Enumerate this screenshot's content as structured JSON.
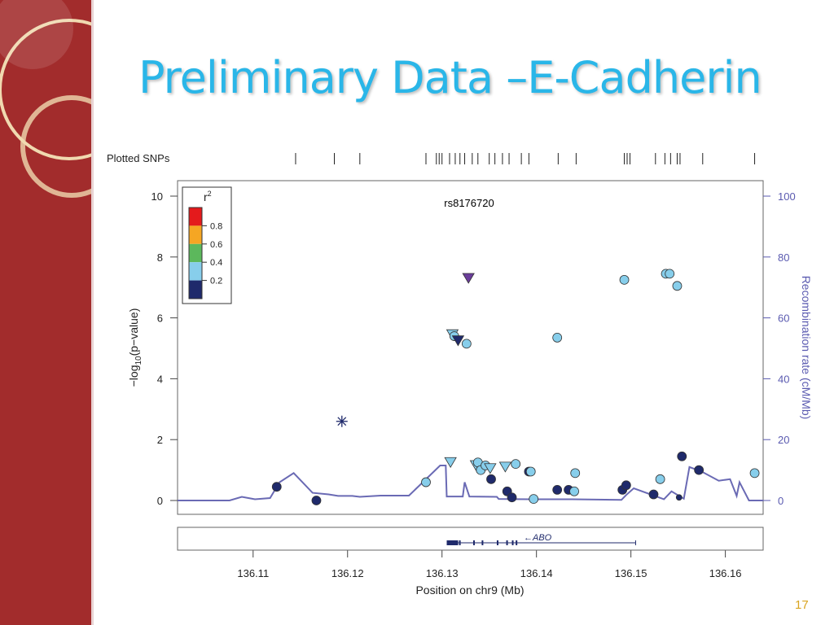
{
  "slide": {
    "title": "Preliminary Data –E-Cadherin",
    "page_number": "17",
    "title_color": "#2ab6e8",
    "sidebar_color": "#a22c2c",
    "ring_color": "#f0d9b0"
  },
  "chart_data": {
    "type": "scatter",
    "title": "",
    "annotation": "rs8176720",
    "xlabel": "Position on chr9 (Mb)",
    "ylabel_left": "−log10(p−value)",
    "ylabel_left_main": "−log",
    "ylabel_left_sub": "10",
    "ylabel_left_tail": "(p−value)",
    "ylabel_right": "Recombination rate (cM/Mb)",
    "xlim": [
      136.102,
      136.164
    ],
    "ylim": [
      0,
      10
    ],
    "ylim_right": [
      0,
      100
    ],
    "x_ticks": [
      "136.11",
      "136.12",
      "136.13",
      "136.14",
      "136.15",
      "136.16"
    ],
    "x_tick_values": [
      136.11,
      136.12,
      136.13,
      136.14,
      136.15,
      136.16
    ],
    "y_ticks_left": [
      "0",
      "2",
      "4",
      "6",
      "8",
      "10"
    ],
    "y_tick_values_left": [
      0,
      2,
      4,
      6,
      8,
      10
    ],
    "y_ticks_right": [
      "0",
      "20",
      "40",
      "60",
      "80",
      "100"
    ],
    "y_tick_values_right": [
      0,
      20,
      40,
      60,
      80,
      100
    ],
    "plotted_snps_label": "Plotted SNPs",
    "plotted_snps": [
      136.1145,
      136.1186,
      136.1213,
      136.1283,
      136.1294,
      136.1297,
      136.13,
      136.1308,
      136.1314,
      136.1319,
      136.1324,
      136.1332,
      136.1338,
      136.135,
      136.1356,
      136.1364,
      136.1371,
      136.1384,
      136.1392,
      136.1423,
      136.1442,
      136.1493,
      136.1496,
      136.1499,
      136.1526,
      136.1536,
      136.1542,
      136.1549,
      136.1552,
      136.1576,
      136.1631
    ],
    "legend": {
      "title": "r",
      "title_sup": "2",
      "levels": [
        "0.8",
        "0.6",
        "0.4",
        "0.2"
      ],
      "colors": [
        "#e41a1c",
        "#f5a623",
        "#5cb85c",
        "#87ceeb",
        "#1f2a6b"
      ]
    },
    "recomb_line_color": "#6a6ab4",
    "recombination": [
      [
        136.102,
        0
      ],
      [
        136.1075,
        0
      ],
      [
        136.1088,
        1.2
      ],
      [
        136.1095,
        0.8
      ],
      [
        136.1102,
        0.4
      ],
      [
        136.1118,
        0.8
      ],
      [
        136.1128,
        6
      ],
      [
        136.1143,
        9
      ],
      [
        136.1163,
        2.5
      ],
      [
        136.118,
        2
      ],
      [
        136.119,
        1.5
      ],
      [
        136.1205,
        1.5
      ],
      [
        136.1213,
        1.2
      ],
      [
        136.1235,
        1.6
      ],
      [
        136.1265,
        1.6
      ],
      [
        136.1298,
        11.5
      ],
      [
        136.1304,
        11.5
      ],
      [
        136.1305,
        1.3
      ],
      [
        136.1322,
        1.3
      ],
      [
        136.1324,
        6
      ],
      [
        136.1329,
        1.3
      ],
      [
        136.1358,
        1.2
      ],
      [
        136.136,
        0.5
      ],
      [
        136.1395,
        0.4
      ],
      [
        136.1405,
        0.4
      ],
      [
        136.1438,
        0.4
      ],
      [
        136.149,
        0.2
      ],
      [
        136.1495,
        1.8
      ],
      [
        136.1503,
        4
      ],
      [
        136.1535,
        0.4
      ],
      [
        136.1543,
        3
      ],
      [
        136.1556,
        0.6
      ],
      [
        136.1562,
        11
      ],
      [
        136.1575,
        9.5
      ],
      [
        136.1593,
        6.5
      ],
      [
        136.1605,
        7
      ],
      [
        136.1612,
        1.5
      ],
      [
        136.1615,
        6
      ],
      [
        136.1625,
        0
      ],
      [
        136.164,
        0
      ]
    ],
    "points": [
      {
        "x": 136.1194,
        "y": 2.6,
        "shape": "asterisk",
        "r2": 0.2
      },
      {
        "x": 136.1328,
        "y": 7.3,
        "shape": "triangle-down",
        "color": "#6a3d9a"
      },
      {
        "x": 136.1125,
        "y": 0.45,
        "shape": "circle",
        "r2": 0.1
      },
      {
        "x": 136.1167,
        "y": 0.0,
        "shape": "circle",
        "r2": 0.1
      },
      {
        "x": 136.1283,
        "y": 0.6,
        "shape": "circle",
        "r2": 0.3
      },
      {
        "x": 136.1309,
        "y": 1.25,
        "shape": "triangle-down",
        "r2": 0.3
      },
      {
        "x": 136.1311,
        "y": 5.45,
        "shape": "triangle-down",
        "r2": 0.3
      },
      {
        "x": 136.1313,
        "y": 5.4,
        "shape": "circle",
        "r2": 0.3
      },
      {
        "x": 136.1317,
        "y": 5.25,
        "shape": "triangle-down",
        "r2": 0.1
      },
      {
        "x": 136.1326,
        "y": 5.15,
        "shape": "circle",
        "r2": 0.3
      },
      {
        "x": 136.1336,
        "y": 1.15,
        "shape": "triangle-down",
        "r2": 0.3
      },
      {
        "x": 136.1338,
        "y": 1.25,
        "shape": "circle",
        "r2": 0.3
      },
      {
        "x": 136.1341,
        "y": 1.0,
        "shape": "circle",
        "r2": 0.3
      },
      {
        "x": 136.1346,
        "y": 1.15,
        "shape": "circle",
        "r2": 0.3
      },
      {
        "x": 136.1351,
        "y": 1.05,
        "shape": "triangle-down",
        "r2": 0.3
      },
      {
        "x": 136.1352,
        "y": 0.7,
        "shape": "circle",
        "r2": 0.1
      },
      {
        "x": 136.1367,
        "y": 1.1,
        "shape": "triangle-down",
        "r2": 0.3
      },
      {
        "x": 136.1369,
        "y": 0.3,
        "shape": "circle",
        "r2": 0.1
      },
      {
        "x": 136.1374,
        "y": 0.1,
        "shape": "circle",
        "r2": 0.1
      },
      {
        "x": 136.1378,
        "y": 1.2,
        "shape": "circle",
        "r2": 0.3
      },
      {
        "x": 136.1392,
        "y": 0.95,
        "shape": "circle",
        "r2": 0.1
      },
      {
        "x": 136.1394,
        "y": 0.95,
        "shape": "circle",
        "r2": 0.3
      },
      {
        "x": 136.1397,
        "y": 0.05,
        "shape": "circle",
        "r2": 0.3
      },
      {
        "x": 136.1422,
        "y": 0.35,
        "shape": "circle",
        "r2": 0.1
      },
      {
        "x": 136.1422,
        "y": 5.35,
        "shape": "circle",
        "r2": 0.3
      },
      {
        "x": 136.1434,
        "y": 0.35,
        "shape": "circle",
        "r2": 0.1
      },
      {
        "x": 136.1441,
        "y": 0.9,
        "shape": "circle",
        "r2": 0.3
      },
      {
        "x": 136.144,
        "y": 0.3,
        "shape": "circle",
        "r2": 0.3
      },
      {
        "x": 136.1493,
        "y": 7.25,
        "shape": "circle",
        "r2": 0.3
      },
      {
        "x": 136.1491,
        "y": 0.35,
        "shape": "circle",
        "r2": 0.1
      },
      {
        "x": 136.1495,
        "y": 0.5,
        "shape": "circle",
        "r2": 0.1
      },
      {
        "x": 136.1524,
        "y": 0.2,
        "shape": "circle",
        "r2": 0.1
      },
      {
        "x": 136.1531,
        "y": 0.7,
        "shape": "circle",
        "r2": 0.3
      },
      {
        "x": 136.1537,
        "y": 7.45,
        "shape": "circle",
        "r2": 0.3
      },
      {
        "x": 136.1541,
        "y": 7.45,
        "shape": "circle",
        "r2": 0.3
      },
      {
        "x": 136.1549,
        "y": 7.05,
        "shape": "circle",
        "r2": 0.3
      },
      {
        "x": 136.1551,
        "y": 0.1,
        "shape": "circle-small",
        "r2": 0.1
      },
      {
        "x": 136.1554,
        "y": 1.45,
        "shape": "circle",
        "r2": 0.1
      },
      {
        "x": 136.1572,
        "y": 1.0,
        "shape": "circle",
        "r2": 0.1
      },
      {
        "x": 136.1631,
        "y": 0.9,
        "shape": "circle",
        "r2": 0.3
      }
    ],
    "gene": {
      "name": "ABO",
      "arrow": "←",
      "start": 136.1305,
      "end": 136.1505,
      "exons": [
        136.1305,
        136.1318,
        136.1333,
        136.1342,
        136.1358,
        136.1368,
        136.1374,
        136.1378
      ]
    }
  }
}
